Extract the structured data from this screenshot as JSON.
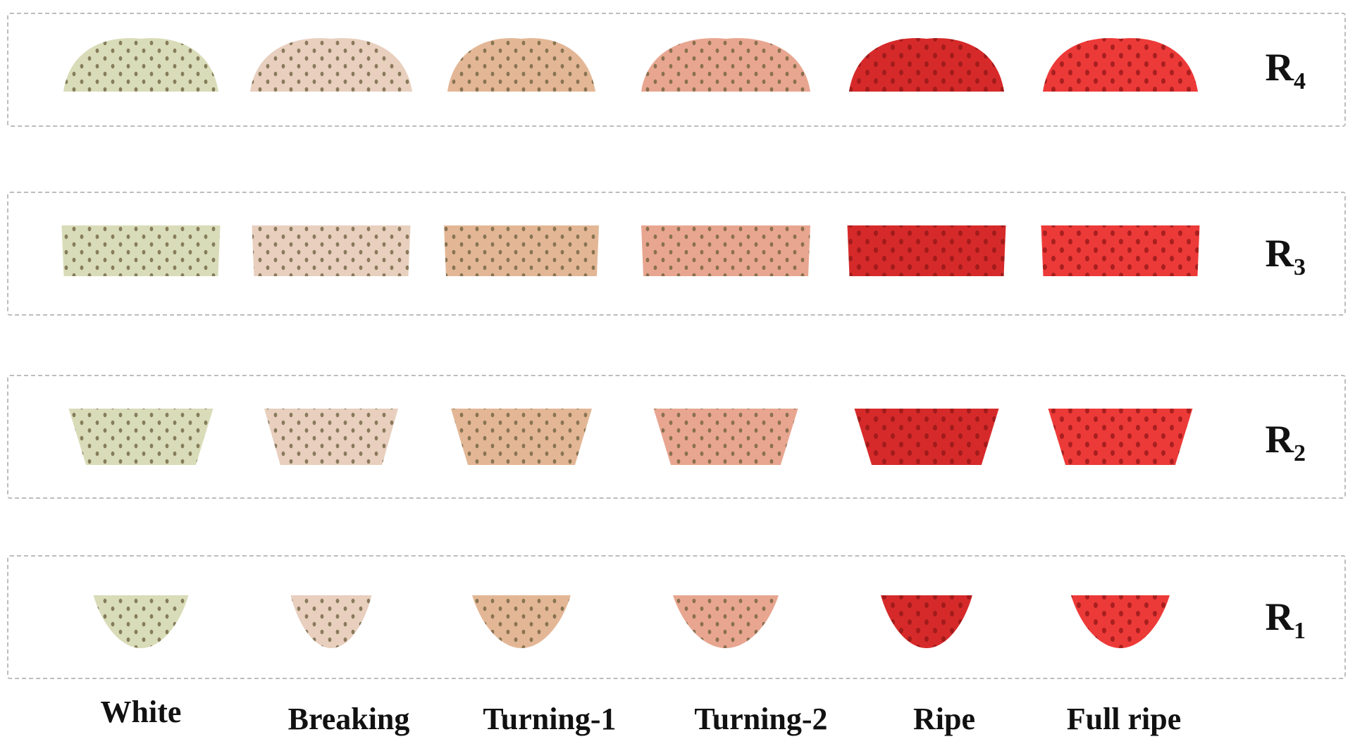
{
  "rows": [
    {
      "base": "R",
      "sub": "4"
    },
    {
      "base": "R",
      "sub": "3"
    },
    {
      "base": "R",
      "sub": "2"
    },
    {
      "base": "R",
      "sub": "1"
    }
  ],
  "stages": [
    {
      "label": "White",
      "color": "#d9dcb8"
    },
    {
      "label": "Breaking",
      "color": "#e8cfbe"
    },
    {
      "label": "Turning-1",
      "color": "#e3b796"
    },
    {
      "label": "Turning-2",
      "color": "#e8a690"
    },
    {
      "label": "Ripe",
      "color": "#d62a2a"
    },
    {
      "label": "Full ripe",
      "color": "#ec3a38"
    }
  ]
}
